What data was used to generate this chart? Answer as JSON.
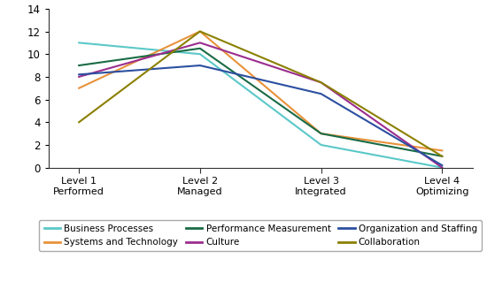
{
  "x_labels": [
    "Level 1\nPerformed",
    "Level 2\nManaged",
    "Level 3\nIntegrated",
    "Level 4\nOptimizing"
  ],
  "x_values": [
    1,
    2,
    3,
    4
  ],
  "series": [
    {
      "name": "Business Processes",
      "values": [
        11,
        10,
        2,
        0
      ],
      "color": "#5BC8C8",
      "linewidth": 1.5
    },
    {
      "name": "Systems and Technology",
      "values": [
        7,
        12,
        3,
        1.5
      ],
      "color": "#E8923A",
      "linewidth": 1.5
    },
    {
      "name": "Performance Measurement",
      "values": [
        9,
        10.5,
        3,
        1
      ],
      "color": "#1A6B45",
      "linewidth": 1.5
    },
    {
      "name": "Culture",
      "values": [
        8,
        11,
        7.5,
        0
      ],
      "color": "#9B2D8E",
      "linewidth": 1.5
    },
    {
      "name": "Organization and Staffing",
      "values": [
        8.2,
        9,
        6.5,
        0.2
      ],
      "color": "#2B4FA0",
      "linewidth": 1.5
    },
    {
      "name": "Collaboration",
      "values": [
        4,
        12,
        7.5,
        1
      ],
      "color": "#8B8000",
      "linewidth": 1.5
    }
  ],
  "ylim": [
    0,
    14
  ],
  "yticks": [
    0,
    2,
    4,
    6,
    8,
    10,
    12,
    14
  ],
  "xlim": [
    0.75,
    4.25
  ],
  "background_color": "#ffffff",
  "legend_order": [
    "Business Processes",
    "Systems and Technology",
    "Performance Measurement",
    "Culture",
    "Organization and Staffing",
    "Collaboration"
  ],
  "legend_ncol": 3,
  "legend_fontsize": 7.5
}
